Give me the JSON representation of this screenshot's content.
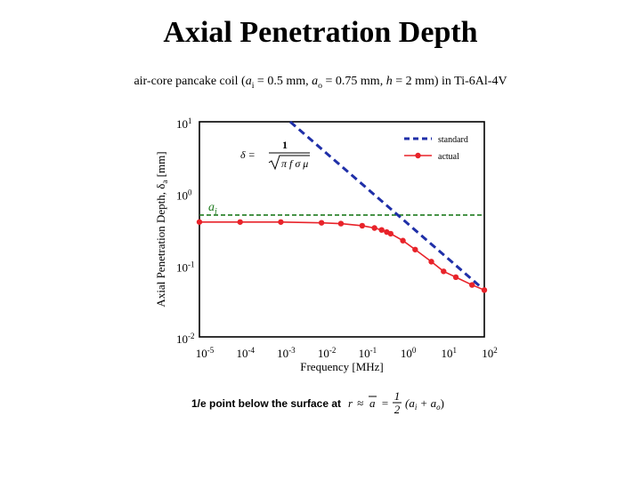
{
  "title": "Axial Penetration Depth",
  "subtitle": {
    "prefix": "air-core pancake coil (",
    "ai_label": "a",
    "ai_sub": "i",
    "ai_value": " = 0.5 mm, ",
    "ao_label": "a",
    "ao_sub": "o",
    "ao_value": " = 0.75 mm, ",
    "h_label": "h",
    "h_value": " = 2 mm)  in Ti-6Al-4V"
  },
  "chart_data": {
    "type": "line",
    "xlabel": "Frequency [MHz]",
    "ylabel_prefix": "Axial Penetration Depth,  δ",
    "ylabel_sub": "a",
    "ylabel_suffix": "  [mm]",
    "xscale": "log",
    "yscale": "log",
    "xlim": [
      1e-05,
      100
    ],
    "ylim": [
      0.01,
      10
    ],
    "x_ticks": [
      {
        "base": "10",
        "exp": "-5"
      },
      {
        "base": "10",
        "exp": "-4"
      },
      {
        "base": "10",
        "exp": "-3"
      },
      {
        "base": "10",
        "exp": "-2"
      },
      {
        "base": "10",
        "exp": "-1"
      },
      {
        "base": "10",
        "exp": "0"
      },
      {
        "base": "10",
        "exp": "1"
      },
      {
        "base": "10",
        "exp": "2"
      }
    ],
    "y_ticks": [
      {
        "base": "10",
        "exp": "-2"
      },
      {
        "base": "10",
        "exp": "-1"
      },
      {
        "base": "10",
        "exp": "0"
      },
      {
        "base": "10",
        "exp": "1"
      }
    ],
    "grid": false,
    "legend_position": "top-right",
    "series": [
      {
        "name": "standard",
        "color": "#1f2fa8",
        "style": "dashed",
        "x": [
          0.0017,
          100
        ],
        "y": [
          10,
          0.045
        ]
      },
      {
        "name": "actual",
        "color": "#e8232a",
        "style": "solid-markers",
        "x": [
          1e-05,
          0.0001,
          0.001,
          0.01,
          0.03,
          0.1,
          0.2,
          0.3,
          0.4,
          0.5,
          1,
          2,
          5,
          10,
          20,
          50,
          100
        ],
        "y": [
          0.4,
          0.4,
          0.4,
          0.39,
          0.38,
          0.355,
          0.33,
          0.31,
          0.29,
          0.275,
          0.22,
          0.165,
          0.112,
          0.082,
          0.068,
          0.053,
          0.045
        ]
      }
    ],
    "reference_line": {
      "label": "a",
      "label_sub": "i",
      "y": 0.5,
      "color": "#1e7a1e"
    },
    "formula": {
      "lhs": "δ =",
      "numerator": "1",
      "radicand": "π f σ μ"
    }
  },
  "bottom_note": {
    "text": "1/e point below the surface at",
    "lhs": "r",
    "approx": "≈",
    "rhs_var": "a",
    "equals": "=",
    "half_num": "1",
    "half_den": "2",
    "paren": "(a",
    "sub_i": "i",
    "plus": " + a",
    "sub_o": "o",
    "close": ")"
  }
}
